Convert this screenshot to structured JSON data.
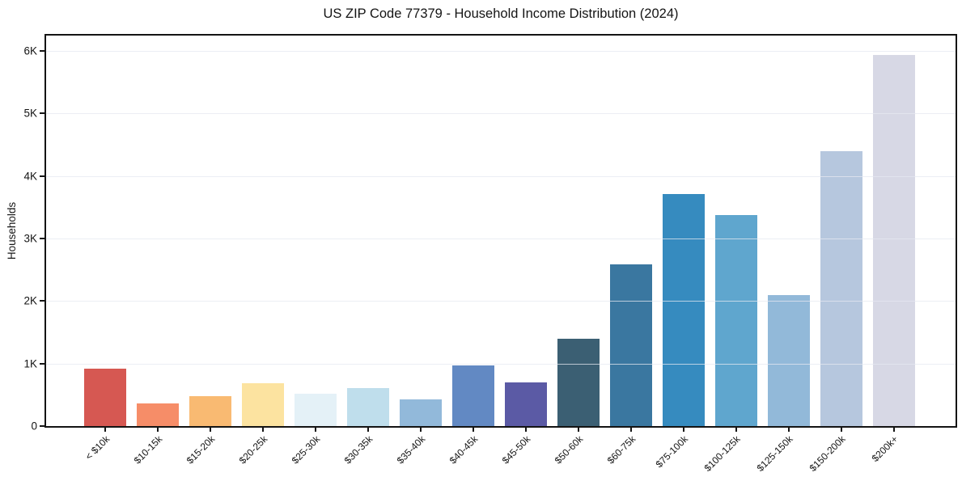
{
  "page": {
    "background": "#ffffff"
  },
  "chart_data": {
    "type": "bar",
    "title": "US ZIP Code 77379 - Household Income Distribution (2024)",
    "xlabel": "",
    "ylabel": "Households",
    "categories": [
      "< $10k",
      "$10-15k",
      "$15-20k",
      "$20-25k",
      "$25-30k",
      "$30-35k",
      "$35-40k",
      "$40-45k",
      "$45-50k",
      "$50-60k",
      "$60-75k",
      "$75-100k",
      "$100-125k",
      "$125-150k",
      "$150-200k",
      "$200k+"
    ],
    "values": [
      920,
      360,
      480,
      690,
      520,
      610,
      425,
      970,
      700,
      1400,
      2580,
      3710,
      3370,
      2100,
      4390,
      5930
    ],
    "bar_colors": [
      "#d65852",
      "#f68d68",
      "#f9ba72",
      "#fce3a0",
      "#e4f1f7",
      "#bfdeec",
      "#92b9da",
      "#6289c3",
      "#5b5aa5",
      "#3b5f73",
      "#3a77a0",
      "#368bbf",
      "#5fa6ce",
      "#92b9d9",
      "#b6c7de",
      "#d7d8e5"
    ],
    "ylim": [
      0,
      6245
    ],
    "ytick_values": [
      0,
      1000,
      2000,
      3000,
      4000,
      5000,
      6000
    ],
    "ytick_labels": [
      "0",
      "1K",
      "2K",
      "3K",
      "4K",
      "5K",
      "6K"
    ],
    "grid": "horizontal-gridlines",
    "legend": "none",
    "styles": {
      "spine_color": "#141414",
      "grid_color": "#e6e8f0",
      "text_color": "#141414",
      "background": "#ffffff"
    }
  }
}
